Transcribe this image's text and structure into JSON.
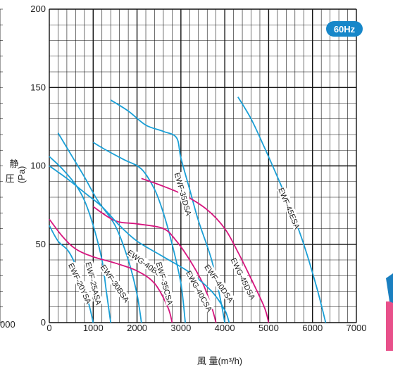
{
  "chart_data": {
    "type": "line",
    "badge": "60Hz",
    "xlabel": "風 量(m³/h)",
    "ylabel_top": "静",
    "ylabel_bottom": "圧",
    "ylabel_unit": "(Pa)",
    "left_partial_tick": "000",
    "xlim": [
      0,
      7000
    ],
    "ylim": [
      0,
      200
    ],
    "x_ticks": [
      "0",
      "1000",
      "2000",
      "3000",
      "4000",
      "5000",
      "6000",
      "7000"
    ],
    "y_ticks": [
      "0",
      "50",
      "100",
      "150",
      "200"
    ],
    "colors": {
      "blue": "#1a9fd6",
      "magenta": "#d6157e",
      "grid": "#111111",
      "badge": "#1787c9"
    },
    "series": [
      {
        "name": "EWF-20YSA",
        "color": "#1a9fd6",
        "points": [
          [
            0,
            62
          ],
          [
            200,
            52
          ],
          [
            450,
            45
          ],
          [
            700,
            30
          ],
          [
            900,
            12
          ],
          [
            1000,
            0
          ]
        ]
      },
      {
        "name": "EWF-25ASA",
        "color": "#1a9fd6",
        "points": [
          [
            0,
            106
          ],
          [
            300,
            98
          ],
          [
            600,
            88
          ],
          [
            800,
            78
          ],
          [
            1000,
            62
          ],
          [
            1200,
            40
          ],
          [
            1300,
            20
          ],
          [
            1400,
            0
          ]
        ]
      },
      {
        "name": "EWF-30BSA",
        "color": "#1a9fd6",
        "points": [
          [
            200,
            121
          ],
          [
            500,
            107
          ],
          [
            800,
            93
          ],
          [
            1100,
            78
          ],
          [
            1500,
            62
          ],
          [
            1800,
            40
          ],
          [
            2000,
            18
          ],
          [
            2100,
            0
          ]
        ]
      },
      {
        "name": "EWG-40BSA",
        "color": "#d6157e",
        "points": [
          [
            0,
            66
          ],
          [
            300,
            55
          ],
          [
            600,
            47
          ],
          [
            1000,
            42
          ],
          [
            1500,
            38
          ],
          [
            2000,
            33
          ],
          [
            2400,
            25
          ],
          [
            2700,
            10
          ],
          [
            2800,
            0
          ]
        ]
      },
      {
        "name": "EWF-35CSA",
        "color": "#1a9fd6",
        "points": [
          [
            1000,
            115
          ],
          [
            1300,
            110
          ],
          [
            1700,
            104
          ],
          [
            2100,
            98
          ],
          [
            2400,
            85
          ],
          [
            2600,
            70
          ],
          [
            2800,
            50
          ],
          [
            3000,
            25
          ],
          [
            3100,
            0
          ]
        ]
      },
      {
        "name": "EWG-40CSA",
        "color": "#d6157e",
        "points": [
          [
            1000,
            74
          ],
          [
            1500,
            65
          ],
          [
            2000,
            63
          ],
          [
            2600,
            60
          ],
          [
            2900,
            52
          ],
          [
            3200,
            40
          ],
          [
            3500,
            25
          ],
          [
            3700,
            10
          ],
          [
            3800,
            0
          ]
        ]
      },
      {
        "name": "EWF-35DSA",
        "color": "#1a9fd6",
        "points": [
          [
            1400,
            142
          ],
          [
            1800,
            135
          ],
          [
            2200,
            126
          ],
          [
            2600,
            122
          ],
          [
            2900,
            118
          ],
          [
            3000,
            105
          ],
          [
            3200,
            85
          ],
          [
            3400,
            65
          ],
          [
            3700,
            40
          ],
          [
            3900,
            15
          ],
          [
            4000,
            0
          ]
        ]
      },
      {
        "name": "EWF-40DSA",
        "color": "#1a9fd6",
        "points": [
          [
            0,
            100
          ],
          [
            400,
            92
          ],
          [
            800,
            83
          ],
          [
            1200,
            74
          ],
          [
            1600,
            62
          ],
          [
            2000,
            52
          ],
          [
            2600,
            42
          ],
          [
            3200,
            32
          ],
          [
            3700,
            20
          ],
          [
            4000,
            8
          ],
          [
            4100,
            0
          ]
        ]
      },
      {
        "name": "EWG-45DSA",
        "color": "#d6157e",
        "points": [
          [
            2100,
            92
          ],
          [
            2600,
            87
          ],
          [
            3100,
            81
          ],
          [
            3600,
            72
          ],
          [
            4000,
            60
          ],
          [
            4300,
            45
          ],
          [
            4600,
            28
          ],
          [
            4900,
            10
          ],
          [
            5000,
            0
          ]
        ]
      },
      {
        "name": "EWF-45ESA",
        "color": "#1a9fd6",
        "points": [
          [
            4300,
            144
          ],
          [
            4600,
            130
          ],
          [
            4900,
            112
          ],
          [
            5200,
            93
          ],
          [
            5500,
            73
          ],
          [
            5800,
            50
          ],
          [
            6100,
            22
          ],
          [
            6300,
            0
          ]
        ]
      }
    ],
    "labels": [
      {
        "text": "EWF-20YSA",
        "series": "EWF-20YSA",
        "x": 700,
        "y": 25
      },
      {
        "text": "EWF-25ASA",
        "series": "EWF-25ASA",
        "x": 1010,
        "y": 25
      },
      {
        "text": "EWF-30BSA",
        "series": "EWF-30BSA",
        "x": 1500,
        "y": 25
      },
      {
        "text": "EWG-40BSA",
        "series": "EWG-40BSA",
        "x": 2220,
        "y": 37
      },
      {
        "text": "EWF-35CSA",
        "series": "EWF-35CSA",
        "x": 2630,
        "y": 25
      },
      {
        "text": "EWG-40CSA",
        "series": "EWG-40CSA",
        "x": 3420,
        "y": 20
      },
      {
        "text": "EWF-35DSA",
        "series": "EWF-35DSA",
        "x": 3050,
        "y": 82
      },
      {
        "text": "EWF-40DSA",
        "series": "EWF-40DSA",
        "x": 3870,
        "y": 25
      },
      {
        "text": "EWG-45DSA",
        "series": "EWG-45DSA",
        "x": 4420,
        "y": 28
      },
      {
        "text": "EWF-45ESA",
        "series": "EWF-45ESA",
        "x": 5470,
        "y": 73
      }
    ]
  }
}
